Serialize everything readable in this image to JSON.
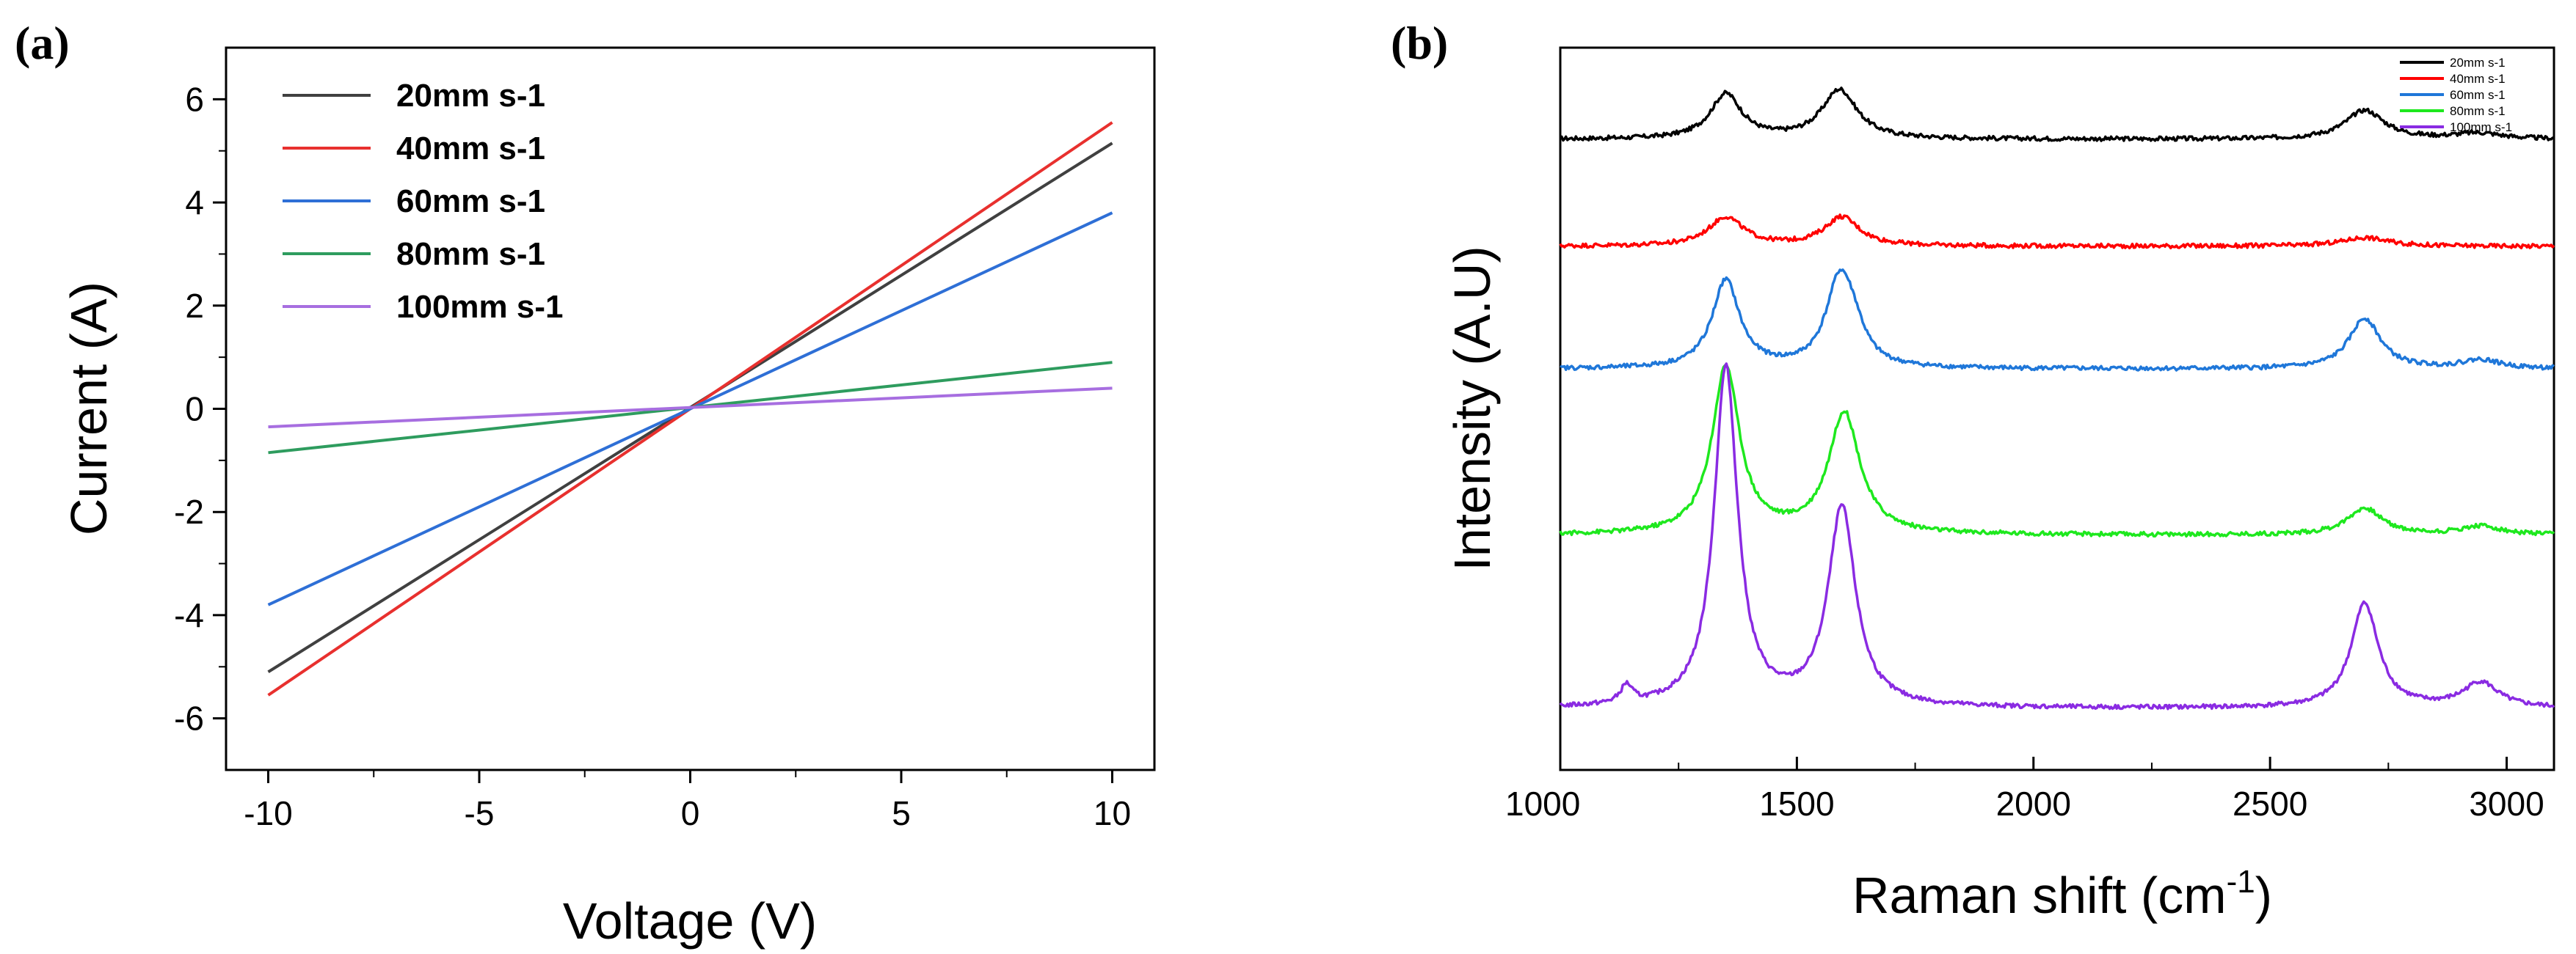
{
  "chart_data": [
    {
      "type": "line",
      "panel_label": "(a)",
      "xlabel": "Voltage (V)",
      "ylabel": "Current (A)",
      "xlim": [
        -11,
        11
      ],
      "ylim": [
        -7,
        7
      ],
      "xticks": [
        -10,
        -5,
        0,
        5,
        10
      ],
      "yticks": [
        -6,
        -4,
        -2,
        0,
        2,
        4,
        6
      ],
      "xtick_labels": [
        "-10",
        "-5",
        "0",
        "5",
        "10"
      ],
      "ytick_labels": [
        "-6",
        "-4",
        "-2",
        "0",
        "2",
        "4",
        "6"
      ],
      "grid": false,
      "legend_position": "top-left",
      "series": [
        {
          "name": "20mm s-1",
          "color": "#404040",
          "x": [
            -10,
            10
          ],
          "y": [
            -5.1,
            5.15
          ]
        },
        {
          "name": "40mm s-1",
          "color": "#e8302e",
          "x": [
            -10,
            10
          ],
          "y": [
            -5.55,
            5.55
          ]
        },
        {
          "name": "60mm s-1",
          "color": "#2e6fd6",
          "x": [
            -10,
            10
          ],
          "y": [
            -3.8,
            3.8
          ]
        },
        {
          "name": "80mm s-1",
          "color": "#2e9c5e",
          "x": [
            -10,
            10
          ],
          "y": [
            -0.85,
            0.9
          ]
        },
        {
          "name": "100mm s-1",
          "color": "#a76ee0",
          "x": [
            -10,
            10
          ],
          "y": [
            -0.35,
            0.4
          ]
        }
      ]
    },
    {
      "type": "line",
      "panel_label": "(b)",
      "xlabel": "Raman shift (cm",
      "xlabel_superscript": "-1",
      "xlabel_suffix": ")",
      "ylabel": "Intensity (A.U)",
      "xlim": [
        1000,
        3100
      ],
      "ylim": [
        0,
        1
      ],
      "xticks": [
        1000,
        1500,
        2000,
        2500,
        3000
      ],
      "xtick_labels": [
        "1000",
        "1500",
        "2000",
        "2500",
        "3000"
      ],
      "grid": false,
      "legend_position": "top-right",
      "series": [
        {
          "name": "20mm s-1",
          "color": "#000000",
          "baseline": 0.873,
          "peaks": [
            {
              "center": 1350,
              "height": 0.062,
              "width": 40
            },
            {
              "center": 1590,
              "height": 0.068,
              "width": 45
            },
            {
              "center": 2700,
              "height": 0.04,
              "width": 50
            },
            {
              "center": 2940,
              "height": 0.008,
              "width": 60
            }
          ]
        },
        {
          "name": "40mm s-1",
          "color": "#ff0000",
          "baseline": 0.725,
          "peaks": [
            {
              "center": 1350,
              "height": 0.04,
              "width": 45
            },
            {
              "center": 1595,
              "height": 0.04,
              "width": 45
            },
            {
              "center": 2700,
              "height": 0.012,
              "width": 60
            }
          ]
        },
        {
          "name": "60mm s-1",
          "color": "#1f77d9",
          "baseline": 0.555,
          "peaks": [
            {
              "center": 1350,
              "height": 0.122,
              "width": 35
            },
            {
              "center": 1590,
              "height": 0.117,
              "width": 35
            },
            {
              "center": 1620,
              "height": 0.035,
              "width": 30
            },
            {
              "center": 2700,
              "height": 0.07,
              "width": 40
            },
            {
              "center": 2945,
              "height": 0.012,
              "width": 50
            }
          ]
        },
        {
          "name": "80mm s-1",
          "color": "#1ee81e",
          "baseline": 0.325,
          "peaks": [
            {
              "center": 1350,
              "height": 0.232,
              "width": 35
            },
            {
              "center": 1600,
              "height": 0.168,
              "width": 40
            },
            {
              "center": 2700,
              "height": 0.037,
              "width": 45
            },
            {
              "center": 2945,
              "height": 0.012,
              "width": 50
            }
          ]
        },
        {
          "name": "100mm s-1",
          "color": "#8a2be2",
          "baseline": 0.085,
          "peaks": [
            {
              "center": 1140,
              "height": 0.025,
              "width": 15
            },
            {
              "center": 1350,
              "height": 0.47,
              "width": 30
            },
            {
              "center": 1595,
              "height": 0.275,
              "width": 35
            },
            {
              "center": 2700,
              "height": 0.145,
              "width": 35
            },
            {
              "center": 2945,
              "height": 0.035,
              "width": 45
            }
          ]
        }
      ]
    }
  ]
}
